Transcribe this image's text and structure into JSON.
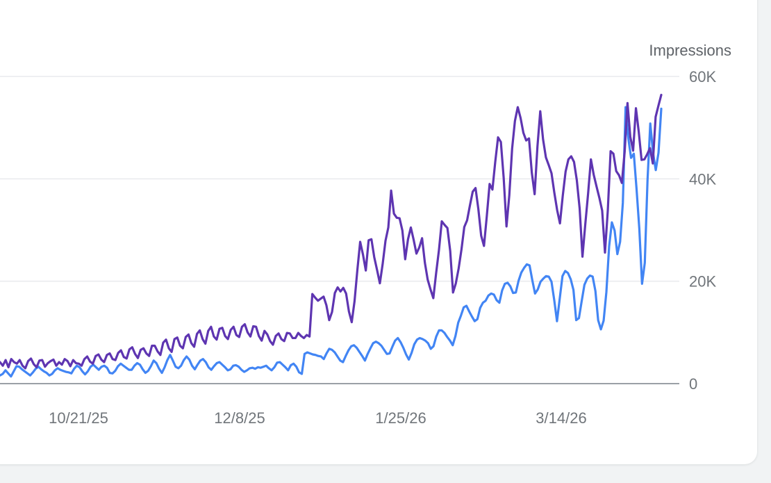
{
  "chart_data": {
    "type": "line",
    "ylabel": "Impressions",
    "y_axis_side": "right",
    "ylim": [
      0,
      60000
    ],
    "y_ticks": [
      {
        "value": 0,
        "label": "0"
      },
      {
        "value": 20000,
        "label": "20K"
      },
      {
        "value": 40000,
        "label": "40K"
      },
      {
        "value": 60000,
        "label": "60K"
      }
    ],
    "x_ticks": [
      "10/21/25",
      "12/8/25",
      "1/25/26",
      "3/14/26"
    ],
    "grid": true,
    "series": [
      {
        "color": "#5e35b1",
        "values": [
          4200,
          3500,
          4600,
          3200,
          4800,
          4200,
          3900,
          4600,
          3500,
          3000,
          4400,
          4900,
          3800,
          3200,
          4500,
          4600,
          3300,
          4000,
          4400,
          4700,
          3500,
          4200,
          3700,
          4800,
          4400,
          3400,
          4600,
          4000,
          3900,
          3500,
          4800,
          5300,
          4300,
          3900,
          5400,
          5700,
          4700,
          4200,
          5600,
          5900,
          4800,
          4600,
          6000,
          6500,
          5200,
          4900,
          6700,
          7100,
          5800,
          5000,
          6600,
          6900,
          5900,
          5400,
          7400,
          7400,
          6300,
          5600,
          8000,
          8600,
          6900,
          6200,
          8700,
          9000,
          7400,
          6900,
          9100,
          9600,
          7900,
          7200,
          9700,
          10400,
          8700,
          7800,
          10300,
          11100,
          9200,
          8600,
          10700,
          10900,
          9300,
          8700,
          10500,
          11100,
          9500,
          9100,
          11100,
          11600,
          10000,
          9200,
          11200,
          11100,
          9300,
          8400,
          10300,
          9600,
          8300,
          7600,
          9300,
          9800,
          8700,
          8300,
          9900,
          9800,
          8900,
          8900,
          9900,
          9300,
          8900,
          9500,
          9200,
          17500,
          16800,
          16200,
          16600,
          17000,
          15300,
          12400,
          14000,
          17700,
          18800,
          18000,
          18700,
          17600,
          14100,
          12000,
          16100,
          22200,
          27700,
          25200,
          22100,
          28000,
          28200,
          24700,
          22200,
          19600,
          23400,
          27900,
          30500,
          37700,
          33200,
          32400,
          32300,
          29900,
          24300,
          28200,
          30500,
          28100,
          25400,
          26600,
          28400,
          23600,
          20300,
          18400,
          16700,
          21600,
          26100,
          31700,
          31000,
          30400,
          25900,
          17800,
          19600,
          22500,
          26200,
          30600,
          31900,
          34800,
          37500,
          38200,
          34100,
          28900,
          26900,
          32700,
          39000,
          37900,
          43300,
          48100,
          47200,
          40200,
          30700,
          36800,
          45900,
          51300,
          54000,
          51900,
          49000,
          47500,
          47900,
          41200,
          37000,
          46300,
          53200,
          47700,
          44200,
          42700,
          41100,
          37300,
          33900,
          31300,
          36700,
          41400,
          43800,
          44400,
          43300,
          39700,
          34200,
          24800,
          31100,
          37100,
          43800,
          40800,
          38500,
          36300,
          33800,
          25600,
          33800,
          45400,
          44900,
          41500,
          40700,
          39200,
          45300,
          54800,
          48200,
          45500,
          53800,
          49200,
          43700,
          43800,
          44800,
          46000,
          43000,
          52100,
          54300,
          56400
        ]
      },
      {
        "color": "#4285f4",
        "values": [
          1600,
          1900,
          2600,
          2000,
          1400,
          2400,
          3400,
          3300,
          2800,
          2400,
          2000,
          1600,
          2200,
          2900,
          3300,
          2800,
          2400,
          2100,
          1600,
          1900,
          2600,
          3000,
          2700,
          2500,
          2300,
          2200,
          2000,
          2900,
          3500,
          3200,
          2400,
          1800,
          2400,
          3300,
          3700,
          3200,
          2700,
          3300,
          3500,
          3100,
          2100,
          2000,
          2500,
          3400,
          3900,
          3500,
          3100,
          2700,
          2700,
          3500,
          4000,
          3700,
          2800,
          2100,
          2500,
          3400,
          4500,
          4000,
          2900,
          2100,
          3200,
          4600,
          5600,
          4500,
          3300,
          3000,
          3500,
          4600,
          5300,
          4700,
          3500,
          2800,
          3700,
          4500,
          4800,
          4200,
          3200,
          2700,
          3400,
          4000,
          4200,
          3700,
          3200,
          2600,
          2800,
          3500,
          3600,
          3300,
          2700,
          2300,
          2600,
          3000,
          3100,
          2900,
          3200,
          3100,
          3300,
          3500,
          3000,
          2600,
          3200,
          4100,
          4200,
          3700,
          3200,
          2600,
          3600,
          3900,
          3300,
          2200,
          1900,
          5800,
          6100,
          5900,
          5700,
          5600,
          5400,
          5300,
          4800,
          5900,
          6800,
          6600,
          6100,
          5300,
          4500,
          4200,
          5400,
          6500,
          7300,
          7500,
          7000,
          6200,
          5400,
          4500,
          5800,
          6900,
          7900,
          8200,
          7900,
          7400,
          6600,
          5800,
          5900,
          7200,
          8400,
          8900,
          8100,
          7000,
          5700,
          4700,
          6000,
          7700,
          8600,
          8900,
          8700,
          8400,
          7900,
          6800,
          7300,
          9200,
          10400,
          10400,
          9900,
          9100,
          8400,
          7500,
          9300,
          11900,
          13300,
          14900,
          15200,
          14100,
          13100,
          12200,
          12600,
          14800,
          15800,
          16200,
          17200,
          17600,
          17400,
          16300,
          15800,
          18200,
          19500,
          19700,
          19000,
          17700,
          17800,
          20100,
          21700,
          22600,
          23300,
          23100,
          20200,
          17600,
          18400,
          19900,
          20500,
          21000,
          20900,
          19900,
          16300,
          12200,
          16600,
          21000,
          22000,
          21600,
          20400,
          18300,
          12400,
          12800,
          16100,
          19300,
          20500,
          21100,
          20900,
          18100,
          12400,
          10600,
          12300,
          17900,
          26800,
          31500,
          29900,
          25300,
          27700,
          35300,
          54000,
          47900,
          44100,
          44900,
          38000,
          30300,
          19500,
          23600,
          39800,
          50800,
          45100,
          41700,
          45100,
          53700
        ]
      }
    ]
  }
}
